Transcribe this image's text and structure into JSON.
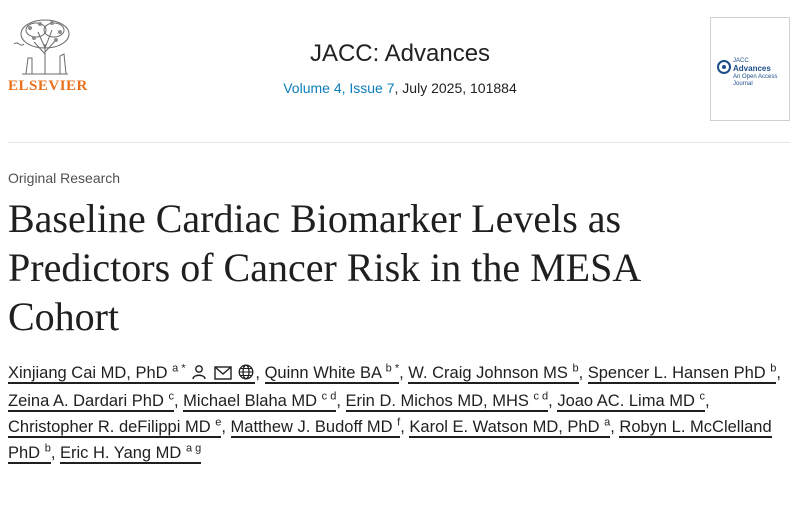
{
  "publisher": {
    "name": "ELSEVIER",
    "brand_color": "#e9711c"
  },
  "journal": {
    "title": "JACC: Advances",
    "volume_issue": "Volume 4, Issue 7",
    "date_article": ", July 2025, 101884",
    "link_color": "#0c7dbb"
  },
  "cover": {
    "line1": "JACC",
    "line2": "Advances",
    "line3": "An Open Access Journal"
  },
  "article": {
    "type": "Original Research",
    "title": "Baseline Cardiac Biomarker Levels as Predictors of Cancer Risk in the MESA Cohort"
  },
  "authors": [
    {
      "name": "Xinjiang Cai MD, PhD",
      "sup": "a *",
      "icons": [
        "person-icon",
        "mail-icon",
        "globe-icon"
      ]
    },
    {
      "name": "Quinn White BA",
      "sup": "b *"
    },
    {
      "name": "W. Craig Johnson MS",
      "sup": "b"
    },
    {
      "name": "Spencer L. Hansen PhD",
      "sup": "b"
    },
    {
      "name": "Zeina A. Dardari PhD",
      "sup": "c"
    },
    {
      "name": "Michael Blaha MD",
      "sup": "c d"
    },
    {
      "name": "Erin D. Michos MD, MHS",
      "sup": "c d"
    },
    {
      "name": "Joao AC. Lima MD",
      "sup": "c"
    },
    {
      "name": "Christopher R. deFilippi MD",
      "sup": "e"
    },
    {
      "name": "Matthew J. Budoff MD",
      "sup": "f"
    },
    {
      "name": "Karol E. Watson MD, PhD",
      "sup": "a"
    },
    {
      "name": "Robyn L. McClelland PhD",
      "sup": "b"
    },
    {
      "name": "Eric H. Yang MD",
      "sup": "a g"
    }
  ]
}
